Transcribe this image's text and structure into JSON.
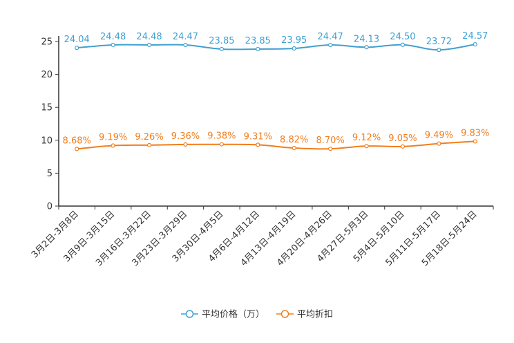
{
  "chart_data": {
    "type": "line",
    "title": "",
    "xlabel": "",
    "ylabel": "",
    "ylim": [
      0,
      25
    ],
    "yticks": [
      0,
      5,
      10,
      15,
      20,
      25
    ],
    "grid": false,
    "legend_position": "bottom",
    "categories": [
      "3月2日-3月8日",
      "3月9日-3月15日",
      "3月16日-3月22日",
      "3月23日-3月29日",
      "3月30日-4月5日",
      "4月6日-4月12日",
      "4月13日-4月19日",
      "4月20日-4月26日",
      "4月27日-5月3日",
      "5月4日-5月10日",
      "5月11日-5月17日",
      "5月18日-5月24日"
    ],
    "series": [
      {
        "name": "平均价格（万）",
        "color": "#3fa0d1",
        "values": [
          24.04,
          24.48,
          24.48,
          24.47,
          23.85,
          23.85,
          23.95,
          24.47,
          24.13,
          24.5,
          23.72,
          24.57
        ],
        "labels": [
          "24.04",
          "24.48",
          "24.48",
          "24.47",
          "23.85",
          "23.85",
          "23.95",
          "24.47",
          "24.13",
          "24.50",
          "23.72",
          "24.57"
        ]
      },
      {
        "name": "平均折扣",
        "color": "#f27d1b",
        "values": [
          8.68,
          9.19,
          9.26,
          9.36,
          9.38,
          9.31,
          8.82,
          8.7,
          9.12,
          9.05,
          9.49,
          9.83
        ],
        "labels": [
          "8.68%",
          "9.19%",
          "9.26%",
          "9.36%",
          "9.38%",
          "9.31%",
          "8.82%",
          "8.70%",
          "9.12%",
          "9.05%",
          "9.49%",
          "9.83%"
        ]
      }
    ]
  }
}
